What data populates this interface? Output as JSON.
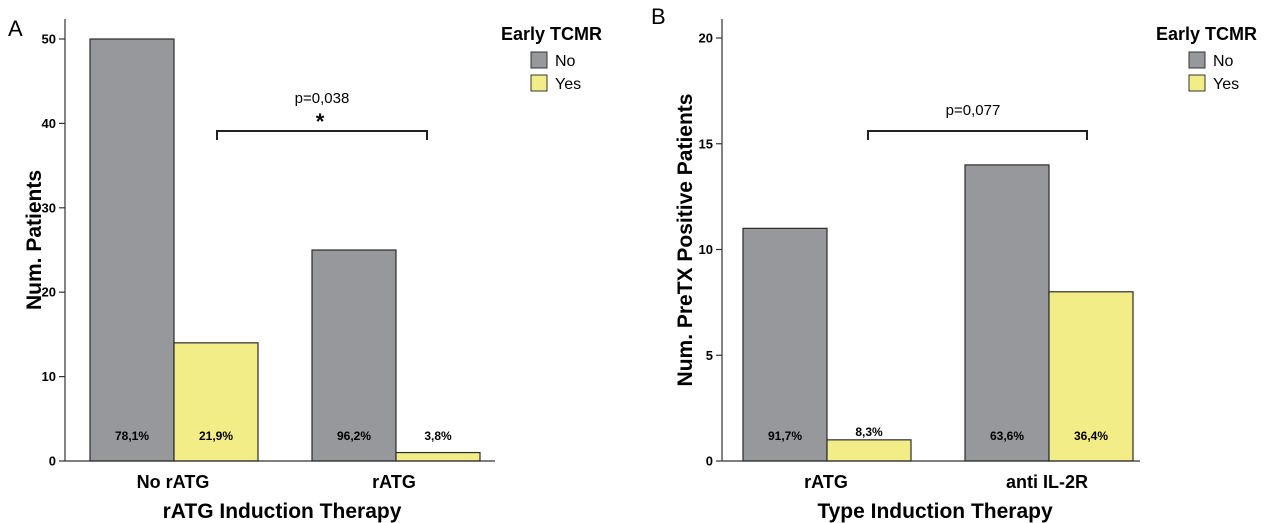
{
  "chart_data": [
    {
      "type": "bar",
      "panel": "A",
      "xlabel": "rATG Induction Therapy",
      "ylabel": "Num. Patients",
      "ylim": [
        0,
        50
      ],
      "yticks": [
        0,
        10,
        20,
        30,
        40,
        50
      ],
      "categories": [
        "No rATG",
        "rATG"
      ],
      "legend": {
        "title": "Early TCMR",
        "placement": "top-right"
      },
      "series": [
        {
          "name": "No",
          "color": "#97989c",
          "values": [
            50,
            25
          ],
          "labels": [
            "78,1%",
            "96,2%"
          ]
        },
        {
          "name": "Yes",
          "color": "#f2ed86",
          "values": [
            14,
            1
          ],
          "labels": [
            "21,9%",
            "3,8%"
          ]
        }
      ],
      "annotation": {
        "text": "p=0,038",
        "mark": "*"
      }
    },
    {
      "type": "bar",
      "panel": "B",
      "xlabel": "Type Induction Therapy",
      "ylabel": "Num. PreTX Positive Patients",
      "ylim": [
        0,
        20
      ],
      "yticks": [
        0,
        5,
        10,
        15,
        20
      ],
      "categories": [
        "rATG",
        "anti IL-2R"
      ],
      "legend": {
        "title": "Early TCMR",
        "placement": "top-right"
      },
      "series": [
        {
          "name": "No",
          "color": "#97989c",
          "values": [
            11,
            14
          ],
          "labels": [
            "91,7%",
            "63,6%"
          ]
        },
        {
          "name": "Yes",
          "color": "#f2ed86",
          "values": [
            1,
            8
          ],
          "labels": [
            "8,3%",
            "36,4%"
          ]
        }
      ],
      "annotation": {
        "text": "p=0,077",
        "mark": ""
      }
    }
  ]
}
